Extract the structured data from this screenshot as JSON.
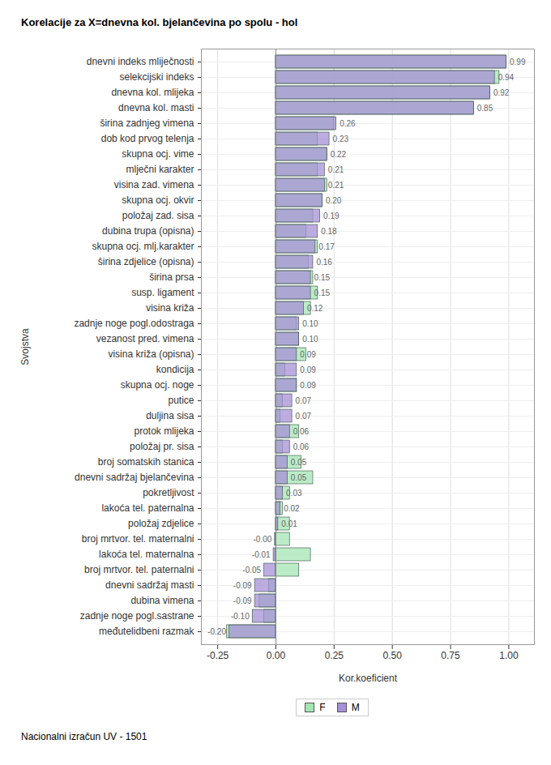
{
  "chart_data": {
    "type": "bar",
    "title": "Korelacije za X=dnevna kol. bjelančevina po spolu - hol",
    "x_label": "Kor.koeficient",
    "y_label": "Svojstva",
    "caption": "Nacionalni izračun UV - 1501",
    "orientation": "horizontal",
    "grid": true,
    "legend": "bottom",
    "data_labels": true,
    "xlim": [
      -0.32,
      1.11
    ],
    "xticks": [
      {
        "value": -0.25,
        "label": "-0.25"
      },
      {
        "value": 0,
        "label": "0.00"
      },
      {
        "value": 0.25,
        "label": "0.25"
      },
      {
        "value": 0.5,
        "label": "0.50"
      },
      {
        "value": 0.75,
        "label": "0.75"
      },
      {
        "value": 1,
        "label": "1.00"
      }
    ],
    "categories": [
      "dnevni indeks mliječnosti",
      "selekcijski indeks",
      "dnevna kol. mlijeka",
      "dnevna kol. masti",
      "širina zadnjeg vimena",
      "dob kod prvog telenja",
      "skupna ocj. vime",
      "mlječni karakter",
      "visina zad. vimena",
      "skupna ocj. okvir",
      "položaj zad. sisa",
      "dubina trupa (opisna)",
      "skupna ocj. mlj.karakter",
      "širina zdjelice (opisna)",
      "širina prsa",
      "susp. ligament",
      "visina križa",
      "zadnje noge pogl.odostraga",
      "vezanost pred. vimena",
      "visina križa (opisna)",
      "kondicija",
      "skupna ocj. noge",
      "putice",
      "duljina sisa",
      "protok mlijeka",
      "položaj pr. sisa",
      "broj somatskih stanica",
      "dnevni sadržaj bjelančevina",
      "pokretljivost",
      "lakoća tel. paternalna",
      "položaj zdjelice",
      "broj mrtvor. tel. maternalni",
      "lakoća tel. maternalna",
      "broj mrtvor. tel. paternalni",
      "dnevni sadržaj masti",
      "dubina vimena",
      "zadnje noge pogl.sastrane",
      "međutelidbeni razmak"
    ],
    "series": [
      {
        "name": "F",
        "color": "#a4e6b4",
        "values": [
          0.99,
          0.96,
          0.92,
          0.85,
          0.25,
          0.18,
          0.22,
          0.18,
          0.22,
          0.2,
          0.16,
          0.13,
          0.18,
          0.14,
          0.16,
          0.18,
          0.15,
          0.09,
          0.1,
          0.13,
          0.04,
          0.09,
          0.03,
          0.02,
          0.1,
          0.03,
          0.11,
          0.16,
          0.06,
          0.03,
          0.06,
          0.06,
          0.15,
          0.1,
          -0.03,
          -0.07,
          -0.05,
          -0.21
        ]
      },
      {
        "name": "M",
        "color": "#a590d6",
        "values": [
          0.99,
          0.94,
          0.92,
          0.85,
          0.26,
          0.23,
          0.22,
          0.21,
          0.21,
          0.2,
          0.19,
          0.18,
          0.17,
          0.16,
          0.15,
          0.15,
          0.12,
          0.1,
          0.1,
          0.09,
          0.09,
          0.09,
          0.07,
          0.07,
          0.06,
          0.06,
          0.05,
          0.05,
          0.03,
          0.02,
          0.01,
          -0.004,
          -0.01,
          -0.05,
          -0.09,
          -0.09,
          -0.1,
          -0.2
        ],
        "value_labels": [
          "0.99",
          "0.94",
          "0.92",
          "0.85",
          "0.26",
          "0.23",
          "0.22",
          "0.21",
          "0.21",
          "0.20",
          "0.19",
          "0.18",
          "0.17",
          "0.16",
          "0.15",
          "0.15",
          "0.12",
          "0.10",
          "0.10",
          "0.09",
          "0.09",
          "0.09",
          "0.07",
          "0.07",
          "0.06",
          "0.06",
          "0.05",
          "0.05",
          "0.03",
          "0.02",
          "0.01",
          "-0.00",
          "-0.01",
          "-0.05",
          "-0.09",
          "-0.09",
          "-0.10",
          "-0.20"
        ]
      }
    ]
  }
}
